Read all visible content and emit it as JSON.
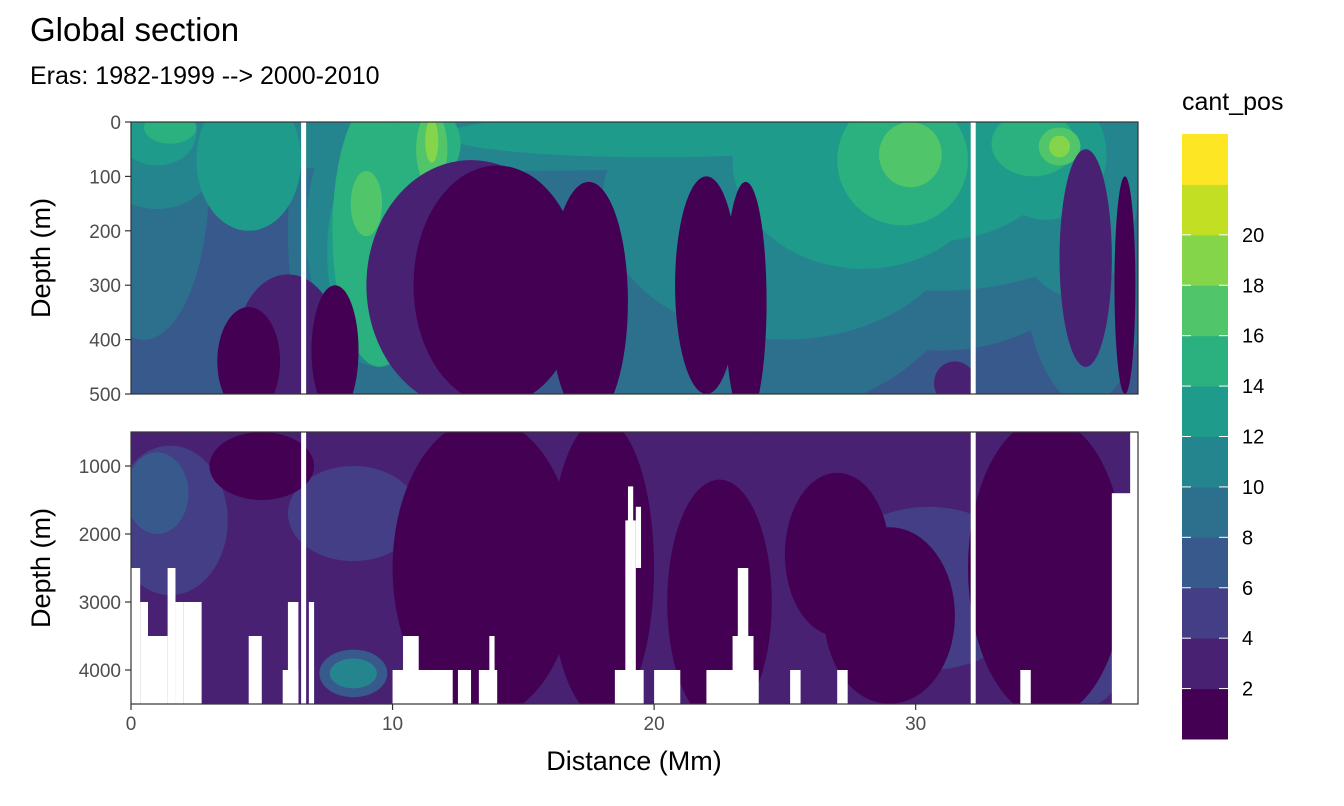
{
  "chart_data": {
    "type": "heatmap",
    "title": "Global section",
    "subtitle": "Eras: 1982-1999 --> 2000-2010",
    "xlabel": "Distance (Mm)",
    "ylabel": "Depth (m)",
    "xlim": [
      0,
      38.5
    ],
    "x_ticks": [
      0,
      10,
      20,
      30
    ],
    "panels": [
      {
        "name": "upper",
        "ylim": [
          0,
          500
        ],
        "y_ticks": [
          0,
          100,
          200,
          300,
          400,
          500
        ]
      },
      {
        "name": "lower",
        "ylim": [
          500,
          4500
        ],
        "y_ticks": [
          1000,
          2000,
          3000,
          4000
        ]
      }
    ],
    "gap_lines_x": [
      6.6,
      32.2
    ],
    "legend": {
      "title": "cant_pos",
      "breaks": [
        2,
        4,
        6,
        8,
        10,
        12,
        14,
        16,
        18,
        20
      ],
      "colors": [
        "#440154",
        "#482173",
        "#433E85",
        "#38598C",
        "#2D708E",
        "#25858E",
        "#1E9B8A",
        "#2BB07F",
        "#51C56A",
        "#85D54A",
        "#C2DF23",
        "#FDE725"
      ]
    },
    "upper_layers": [
      {
        "v": 8,
        "blobs": [
          [
            0.5,
            100,
            2.5,
            300
          ],
          [
            9.5,
            200,
            3.5,
            400
          ],
          [
            14,
            60,
            18,
            80
          ],
          [
            23,
            250,
            9,
            300
          ],
          [
            31,
            120,
            7,
            300
          ],
          [
            36.5,
            220,
            2.5,
            300
          ]
        ]
      },
      {
        "v": 10,
        "blobs": [
          [
            1,
            40,
            2.5,
            120
          ],
          [
            9.5,
            200,
            2.8,
            250
          ],
          [
            14,
            40,
            16,
            50
          ],
          [
            25,
            150,
            7,
            250
          ],
          [
            31,
            60,
            8,
            250
          ],
          [
            36,
            120,
            2.5,
            200
          ]
        ]
      },
      {
        "v": 12,
        "blobs": [
          [
            1,
            20,
            1.5,
            60
          ],
          [
            4.5,
            70,
            2,
            130
          ],
          [
            9.5,
            240,
            2,
            200
          ],
          [
            20,
            25,
            8,
            40
          ],
          [
            28,
            70,
            5,
            200
          ],
          [
            30.5,
            60,
            5,
            160
          ],
          [
            35,
            60,
            2.3,
            120
          ]
        ]
      },
      {
        "v": 14,
        "blobs": [
          [
            1.5,
            10,
            1,
            30
          ],
          [
            9.5,
            200,
            1.8,
            250
          ],
          [
            11.3,
            40,
            1.3,
            70
          ],
          [
            29.5,
            70,
            2.5,
            120
          ],
          [
            34.5,
            40,
            1.6,
            60
          ]
        ]
      },
      {
        "v": 16,
        "blobs": [
          [
            9,
            150,
            0.6,
            60
          ],
          [
            11.5,
            50,
            0.6,
            70
          ],
          [
            29.8,
            60,
            1.2,
            60
          ],
          [
            35.5,
            45,
            0.8,
            35
          ]
        ]
      },
      {
        "v": 18,
        "blobs": [
          [
            11.5,
            35,
            0.25,
            40
          ],
          [
            35.5,
            45,
            0.4,
            20
          ]
        ]
      },
      {
        "v": 2,
        "blobs": [
          [
            13,
            300,
            4,
            230
          ],
          [
            6,
            420,
            2,
            140
          ],
          [
            36.5,
            250,
            1,
            200
          ],
          [
            31.5,
            480,
            0.8,
            40
          ]
        ]
      },
      {
        "v": 1,
        "blobs": [
          [
            14,
            300,
            3.2,
            220
          ],
          [
            17.5,
            330,
            1.5,
            220
          ],
          [
            22,
            300,
            1.2,
            200
          ],
          [
            23.5,
            330,
            0.8,
            220
          ],
          [
            4.5,
            440,
            1.2,
            100
          ],
          [
            7.8,
            420,
            0.9,
            120
          ],
          [
            38,
            300,
            0.4,
            200
          ]
        ]
      }
    ],
    "lower_layers": [
      {
        "v": 2,
        "blobs": [
          [
            2,
            1200,
            3,
            900
          ],
          [
            13,
            1500,
            6,
            2000
          ],
          [
            22,
            1800,
            6,
            1800
          ],
          [
            30,
            1500,
            8,
            1500
          ],
          [
            36,
            1000,
            3,
            800
          ]
        ]
      },
      {
        "v": 4,
        "blobs": [
          [
            1.5,
            1800,
            2.2,
            1100
          ],
          [
            8.5,
            1700,
            2.5,
            700
          ],
          [
            30.5,
            2800,
            4,
            1200
          ],
          [
            36,
            3800,
            2,
            800
          ]
        ]
      },
      {
        "v": 6,
        "blobs": [
          [
            1,
            1400,
            1.2,
            600
          ],
          [
            8.5,
            4050,
            1.3,
            350
          ]
        ]
      },
      {
        "v": 10,
        "blobs": [
          [
            8.5,
            4050,
            0.9,
            220
          ]
        ]
      },
      {
        "v": 1,
        "blobs": [
          [
            5,
            1000,
            2,
            500
          ],
          [
            13.5,
            2500,
            3.5,
            2200
          ],
          [
            18,
            2500,
            2,
            2200
          ],
          [
            22.5,
            3000,
            2,
            1800
          ],
          [
            27,
            2300,
            2,
            1200
          ],
          [
            29,
            3200,
            2.5,
            1300
          ],
          [
            35,
            2500,
            3,
            2200
          ]
        ]
      }
    ],
    "masks": [
      [
        0,
        2500,
        0.35,
        4500
      ],
      [
        0.35,
        3000,
        0.65,
        4500
      ],
      [
        0.65,
        3500,
        1.4,
        4500
      ],
      [
        1.4,
        2500,
        1.7,
        4500
      ],
      [
        1.7,
        3000,
        2.0,
        4500
      ],
      [
        2.0,
        3000,
        2.7,
        4500
      ],
      [
        4.5,
        3500,
        5.0,
        4500
      ],
      [
        6.0,
        3000,
        6.4,
        4500
      ],
      [
        6.8,
        3000,
        7.0,
        4500
      ],
      [
        5.8,
        4000,
        6.4,
        4500
      ],
      [
        10.0,
        4000,
        12.3,
        4500
      ],
      [
        10.4,
        3500,
        11.0,
        4500
      ],
      [
        12.5,
        4000,
        13.0,
        4500
      ],
      [
        13.3,
        4000,
        14.0,
        4500
      ],
      [
        13.7,
        3500,
        13.9,
        4500
      ],
      [
        18.5,
        4000,
        19.6,
        4500
      ],
      [
        18.9,
        1800,
        19.3,
        4500
      ],
      [
        19.0,
        1300,
        19.2,
        4500
      ],
      [
        19.3,
        1600,
        19.5,
        2500
      ],
      [
        20.0,
        4000,
        21.0,
        4500
      ],
      [
        22.0,
        4000,
        24.0,
        4500
      ],
      [
        23.0,
        3500,
        23.8,
        4500
      ],
      [
        23.2,
        2500,
        23.6,
        4500
      ],
      [
        25.2,
        4000,
        25.6,
        4500
      ],
      [
        27.0,
        4000,
        27.4,
        4500
      ],
      [
        34.0,
        4000,
        34.4,
        4500
      ],
      [
        37.5,
        1400,
        38.5,
        4500
      ],
      [
        38.2,
        500,
        38.5,
        4500
      ]
    ]
  }
}
